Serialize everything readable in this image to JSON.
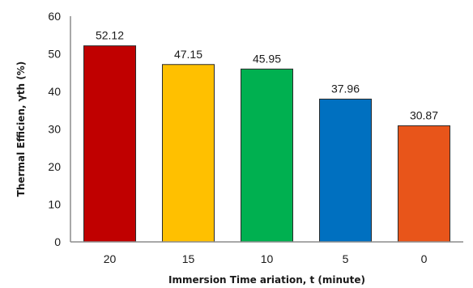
{
  "chart_data": {
    "type": "bar",
    "categories": [
      "20",
      "15",
      "10",
      "5",
      "0"
    ],
    "values": [
      52.12,
      47.15,
      45.95,
      37.96,
      30.87
    ],
    "data_labels": [
      "52.12",
      "47.15",
      "45.95",
      "37.96",
      "30.87"
    ],
    "colors": [
      "#c00000",
      "#ffc000",
      "#00b050",
      "#0070c0",
      "#e8551a"
    ],
    "xlabel": "Immersion Time ariation, t (minute)",
    "ylabel": "Thermal Efficien, γth (%)",
    "ylim": [
      0,
      60
    ],
    "yticks": [
      "0",
      "10",
      "20",
      "30",
      "40",
      "50",
      "60"
    ],
    "grid": false,
    "legend": "none"
  }
}
